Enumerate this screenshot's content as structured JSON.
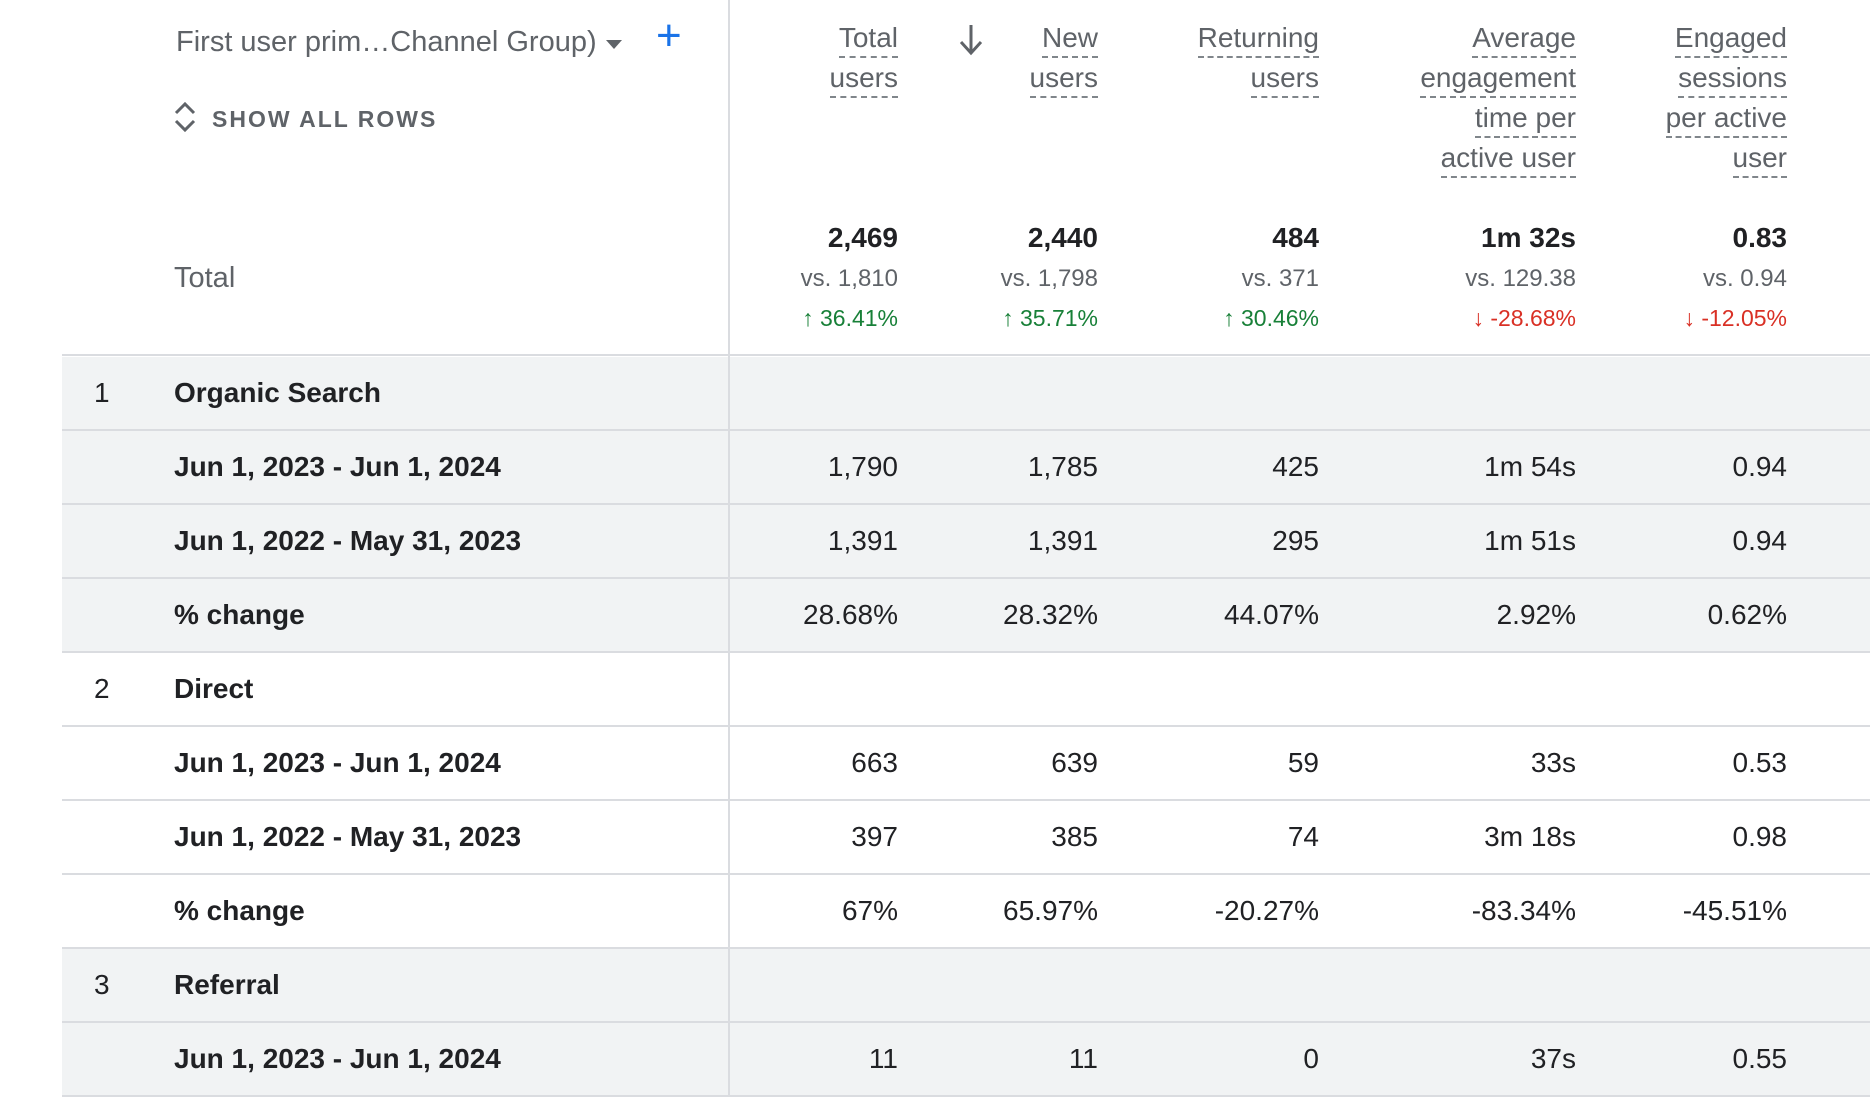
{
  "header": {
    "dimension_label": "First user prim…Channel Group)",
    "show_all_rows": "SHOW ALL ROWS"
  },
  "columns": [
    {
      "lines": [
        "Total",
        "users"
      ]
    },
    {
      "lines": [
        "New",
        "users"
      ],
      "sorted": true
    },
    {
      "lines": [
        "Returning",
        "users"
      ]
    },
    {
      "lines": [
        "Average",
        "engagement",
        "time per",
        "active user"
      ]
    },
    {
      "lines": [
        "Engaged",
        "sessions",
        "per active",
        "user"
      ]
    }
  ],
  "totals": {
    "label": "Total",
    "values": [
      {
        "value": "2,469",
        "vs": "vs. 1,810",
        "change": "36.41%",
        "direction": "up"
      },
      {
        "value": "2,440",
        "vs": "vs. 1,798",
        "change": "35.71%",
        "direction": "up"
      },
      {
        "value": "484",
        "vs": "vs. 371",
        "change": "30.46%",
        "direction": "up"
      },
      {
        "value": "1m 32s",
        "vs": "vs. 129.38",
        "change": "-28.68%",
        "direction": "down"
      },
      {
        "value": "0.83",
        "vs": "vs. 0.94",
        "change": "-12.05%",
        "direction": "down"
      }
    ]
  },
  "rows": [
    {
      "index": "1",
      "label": "Organic Search",
      "cells": [
        "",
        "",
        "",
        "",
        ""
      ],
      "shaded": true
    },
    {
      "index": "",
      "label": "Jun 1, 2023 - Jun 1, 2024",
      "cells": [
        "1,790",
        "1,785",
        "425",
        "1m 54s",
        "0.94"
      ],
      "shaded": true
    },
    {
      "index": "",
      "label": "Jun 1, 2022 - May 31, 2023",
      "cells": [
        "1,391",
        "1,391",
        "295",
        "1m 51s",
        "0.94"
      ],
      "shaded": true
    },
    {
      "index": "",
      "label": "% change",
      "cells": [
        "28.68%",
        "28.32%",
        "44.07%",
        "2.92%",
        "0.62%"
      ],
      "shaded": true
    },
    {
      "index": "2",
      "label": "Direct",
      "cells": [
        "",
        "",
        "",
        "",
        ""
      ],
      "shaded": false
    },
    {
      "index": "",
      "label": "Jun 1, 2023 - Jun 1, 2024",
      "cells": [
        "663",
        "639",
        "59",
        "33s",
        "0.53"
      ],
      "shaded": false
    },
    {
      "index": "",
      "label": "Jun 1, 2022 - May 31, 2023",
      "cells": [
        "397",
        "385",
        "74",
        "3m 18s",
        "0.98"
      ],
      "shaded": false
    },
    {
      "index": "",
      "label": "% change",
      "cells": [
        "67%",
        "65.97%",
        "-20.27%",
        "-83.34%",
        "-45.51%"
      ],
      "shaded": false
    },
    {
      "index": "3",
      "label": "Referral",
      "cells": [
        "",
        "",
        "",
        "",
        ""
      ],
      "shaded": true
    },
    {
      "index": "",
      "label": "Jun 1, 2023 - Jun 1, 2024",
      "cells": [
        "11",
        "11",
        "0",
        "37s",
        "0.55"
      ],
      "shaded": true
    }
  ],
  "colors": {
    "accent": "#1a73e8",
    "up": "#188038",
    "down": "#d93025",
    "row_shade": "#f1f3f4"
  },
  "icons": {
    "add": "plus-icon",
    "expand": "unfold-icon",
    "sort": "arrow-down-icon",
    "dropdown": "caret-down-icon"
  }
}
